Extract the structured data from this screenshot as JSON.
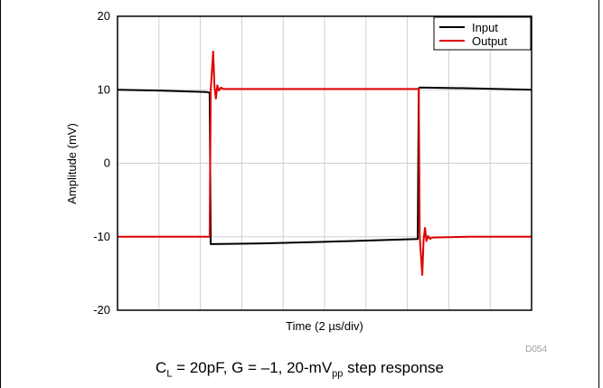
{
  "chart_data": {
    "type": "line",
    "xlabel": "Time (2 µs/div)",
    "ylabel": "Amplitude (mV)",
    "ylim": [
      -20,
      20
    ],
    "yticks": [
      -20,
      -10,
      0,
      10,
      20
    ],
    "xlim": [
      0,
      20
    ],
    "xdivisions": 10,
    "grid": true,
    "legend_position": "top-right",
    "series": [
      {
        "name": "Input",
        "color": "#000000",
        "x": [
          0,
          2,
          4.3,
          4.45,
          4.5,
          7,
          10,
          14.5,
          14.55,
          14.6,
          17,
          20
        ],
        "y": [
          10,
          9.9,
          9.7,
          9.6,
          -11,
          -10.9,
          -10.7,
          -10.3,
          10.2,
          10.3,
          10.2,
          10
        ]
      },
      {
        "name": "Output",
        "color": "#e00000",
        "x": [
          0,
          4.45,
          4.5,
          4.62,
          4.68,
          4.75,
          4.82,
          4.9,
          5.0,
          5.1,
          8,
          12,
          14.55,
          14.6,
          14.72,
          14.78,
          14.85,
          14.92,
          15.0,
          15.1,
          15.2,
          17,
          20
        ],
        "y": [
          -10,
          -10,
          10,
          15.2,
          10.5,
          8.8,
          10.6,
          9.9,
          10.3,
          10.1,
          10.1,
          10.1,
          10.1,
          -10,
          -15.2,
          -10.5,
          -8.8,
          -10.6,
          -9.9,
          -10.3,
          -10.1,
          -10,
          -10
        ]
      }
    ],
    "figure_id": "D054"
  },
  "caption": {
    "c": "C",
    "c_sub": "L",
    "mid": " = 20pF, G = –1, 20-mV",
    "v_sub": "pp",
    "tail": " step response"
  }
}
